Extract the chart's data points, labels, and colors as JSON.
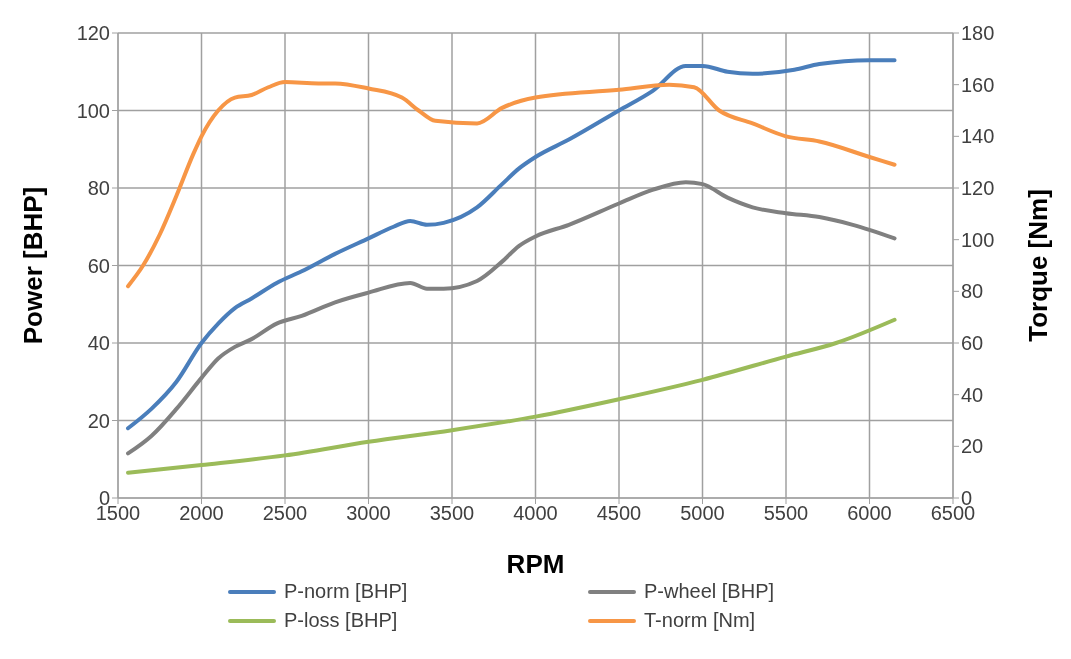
{
  "chart_data": {
    "type": "line",
    "xlabel": "RPM",
    "ylabel": "Power [BHP]",
    "y2label": "Torque [Nm]",
    "xlim": [
      1500,
      6500
    ],
    "xticks": [
      1500,
      2000,
      2500,
      3000,
      3500,
      4000,
      4500,
      5000,
      5500,
      6000,
      6500
    ],
    "ylim": [
      0,
      120
    ],
    "yticks": [
      0,
      20,
      40,
      60,
      80,
      100,
      120
    ],
    "y2lim": [
      0,
      180
    ],
    "y2ticks": [
      0,
      20,
      40,
      60,
      80,
      100,
      120,
      140,
      160,
      180
    ],
    "grid": true,
    "legend": "bottom",
    "marker": "none",
    "line_style": "solid",
    "series": [
      {
        "name": "P-norm [BHP]",
        "color": "#4a7ebb",
        "x": [
          1560,
          1700,
          1850,
          2000,
          2100,
          2200,
          2300,
          2450,
          2600,
          2800,
          3000,
          3150,
          3250,
          3350,
          3450,
          3650,
          3800,
          3900,
          4000,
          4200,
          4500,
          4700,
          4900,
          5000,
          5150,
          5300,
          5550,
          5700,
          6000,
          6150
        ],
        "values": [
          18,
          23,
          30,
          40,
          45,
          49,
          51.5,
          55.5,
          58.5,
          63,
          67,
          70,
          71.5,
          70.5,
          71,
          75,
          81,
          85,
          88,
          92.5,
          100,
          105,
          111.5,
          111.5,
          110,
          109.5,
          110.5,
          112,
          113,
          113
        ]
      },
      {
        "name": "P-wheel [BHP]",
        "color": "#808080",
        "x": [
          1560,
          1700,
          1850,
          2000,
          2100,
          2200,
          2300,
          2450,
          2600,
          2800,
          3000,
          3250,
          3350,
          3450,
          3650,
          3800,
          3900,
          4000,
          4200,
          4500,
          4700,
          4900,
          5000,
          5150,
          5300,
          5500,
          5700,
          5900,
          6150
        ],
        "values": [
          11.5,
          16,
          23,
          31,
          36,
          39,
          41,
          45,
          47,
          50.5,
          53,
          55.5,
          54,
          54,
          56,
          61,
          65,
          67.5,
          70.5,
          76,
          79.5,
          81.5,
          81,
          77.5,
          75,
          73.5,
          72.5,
          70.5,
          67
        ]
      },
      {
        "name": "P-loss [BHP]",
        "color": "#9bbb59",
        "x": [
          1560,
          2000,
          2500,
          3000,
          3500,
          4000,
          4500,
          5000,
          5500,
          5800,
          6150
        ],
        "values": [
          6.5,
          8.5,
          11,
          14.5,
          17.5,
          21,
          25.5,
          30.5,
          36.5,
          40,
          46
        ]
      },
      {
        "name": "T-norm [Nm]",
        "color": "#f79646",
        "axis": "y2",
        "x": [
          1560,
          1650,
          1750,
          1850,
          1950,
          2000,
          2100,
          2200,
          2300,
          2400,
          2500,
          2700,
          2800,
          3000,
          3200,
          3300,
          3400,
          3650,
          3800,
          4000,
          4500,
          4800,
          4950,
          5100,
          5300,
          5500,
          5700,
          6000,
          6150
        ],
        "values": [
          82,
          90,
          102,
          117,
          133,
          140,
          150,
          155,
          156,
          159,
          161,
          160.5,
          160.5,
          158.5,
          155,
          150,
          146,
          145,
          151,
          155,
          158,
          160,
          159,
          150,
          145,
          140,
          138,
          132,
          129
        ]
      }
    ]
  }
}
